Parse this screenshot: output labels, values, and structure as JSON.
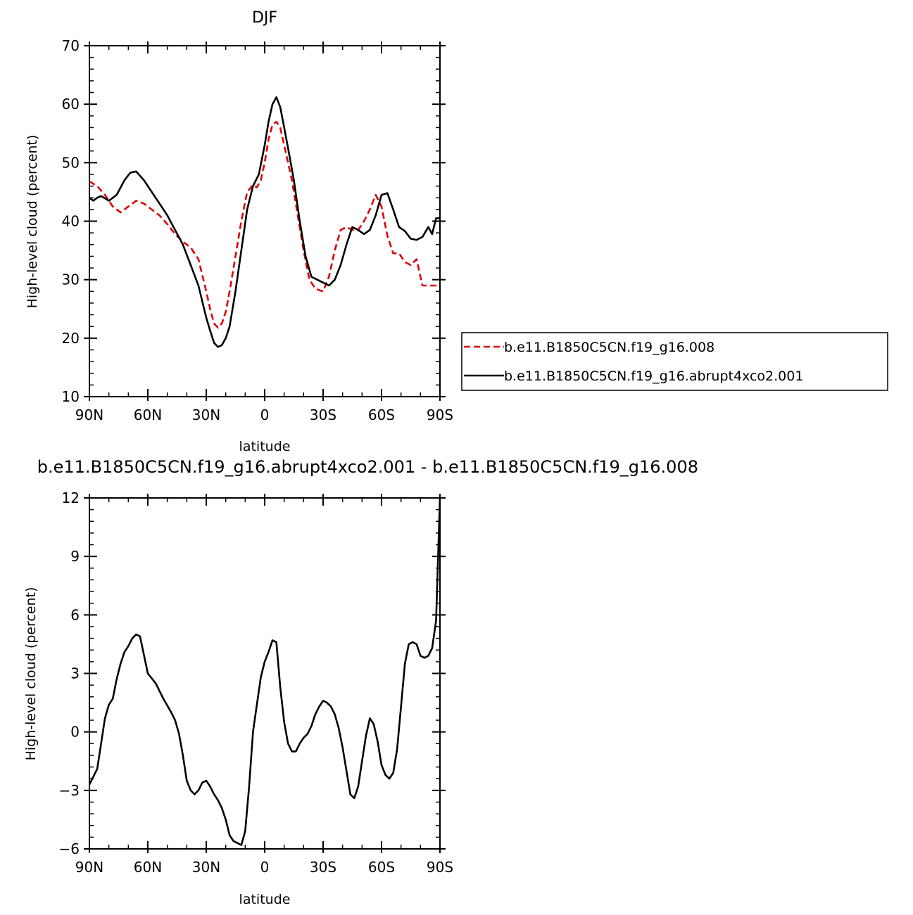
{
  "chart_data": [
    {
      "type": "line",
      "title": "DJF",
      "xlabel": "latitude",
      "ylabel": "High-level cloud (percent)",
      "xlim": [
        90,
        -90
      ],
      "ylim": [
        10,
        70
      ],
      "xtick_values": [
        90,
        60,
        30,
        0,
        -30,
        -60,
        -90
      ],
      "xtick_labels": [
        "90N",
        "60N",
        "30N",
        "0",
        "30S",
        "60S",
        "90S"
      ],
      "ytick_values": [
        10,
        20,
        30,
        40,
        50,
        60,
        70
      ],
      "ytick_labels": [
        "10",
        "20",
        "30",
        "40",
        "50",
        "60",
        "70"
      ],
      "grid": false,
      "legend": "right",
      "series": [
        {
          "name": "b.e11.B1850C5CN.f19_g16.008",
          "color": "#e00000",
          "dashed": true,
          "x": [
            90,
            86,
            82,
            78,
            74,
            70,
            66,
            62,
            58,
            54,
            50,
            46,
            42,
            38,
            34,
            30,
            28,
            26,
            24,
            22,
            20,
            18,
            15,
            12,
            9,
            6,
            4,
            2,
            0,
            -2,
            -4,
            -6,
            -8,
            -10,
            -12,
            -14,
            -17,
            -20,
            -23,
            -26,
            -28,
            -30,
            -33,
            -36,
            -39,
            -42,
            -45,
            -48,
            -51,
            -54,
            -57,
            -60,
            -63,
            -66,
            -69,
            -72,
            -75,
            -78,
            -81,
            -84,
            -86,
            -88,
            -90
          ],
          "y": [
            46.8,
            46,
            44.5,
            42.5,
            41.5,
            42.5,
            43.5,
            43,
            42,
            41,
            39.5,
            37.8,
            36.5,
            35.5,
            33.5,
            28,
            25,
            22.5,
            21.8,
            22.5,
            24.5,
            28,
            34,
            40,
            45,
            46.2,
            45.8,
            47,
            50,
            54,
            56.5,
            57,
            56,
            53,
            50,
            47,
            41,
            35,
            30,
            28.5,
            28.2,
            28,
            30.5,
            35,
            38.5,
            39,
            38.5,
            38.5,
            40,
            42,
            44.5,
            42.5,
            37.5,
            34.5,
            34.5,
            33,
            32.5,
            33.5,
            29,
            29,
            29,
            29,
            29
          ]
        },
        {
          "name": "b.e11.B1850C5CN.f19_g16.abrupt4xco2.001",
          "color": "#000000",
          "dashed": false,
          "x": [
            90,
            88,
            86,
            84,
            80,
            76,
            72,
            69,
            66,
            62,
            58,
            54,
            50,
            46,
            42,
            38,
            34,
            30,
            28,
            26,
            24,
            22,
            20,
            18,
            15,
            12,
            9,
            6,
            3,
            0,
            -2,
            -4,
            -6,
            -8,
            -10,
            -12,
            -15,
            -18,
            -21,
            -24,
            -27,
            -30,
            -33,
            -36,
            -39,
            -42,
            -45,
            -48,
            -51,
            -54,
            -57,
            -60,
            -63,
            -66,
            -69,
            -72,
            -75,
            -78,
            -81,
            -84,
            -86,
            -88,
            -90
          ],
          "y": [
            44,
            43.5,
            44,
            44.3,
            43.5,
            44.5,
            47,
            48.3,
            48.5,
            47,
            45,
            43,
            41,
            38.5,
            36,
            32.5,
            29,
            23.5,
            21.3,
            19.2,
            18.5,
            18.8,
            20,
            22,
            28,
            35,
            42,
            46,
            48,
            53,
            57,
            60,
            61.2,
            59.5,
            56,
            52.5,
            47,
            40,
            34,
            30.5,
            30,
            29.5,
            29,
            30,
            32.5,
            36,
            39,
            38.5,
            37.8,
            38.5,
            41,
            44.5,
            44.8,
            42,
            39,
            38.3,
            37,
            36.8,
            37.3,
            39,
            37.8,
            40.5,
            40.5
          ]
        }
      ]
    },
    {
      "type": "line",
      "title": "b.e11.B1850C5CN.f19_g16.abrupt4xco2.001 - b.e11.B1850C5CN.f19_g16.008",
      "xlabel": "latitude",
      "ylabel": "High-level cloud (percent)",
      "xlim": [
        90,
        -90
      ],
      "ylim": [
        -6,
        12
      ],
      "xtick_values": [
        90,
        60,
        30,
        0,
        -30,
        -60,
        -90
      ],
      "xtick_labels": [
        "90N",
        "60N",
        "30N",
        "0",
        "30S",
        "60S",
        "90S"
      ],
      "ytick_values": [
        -6,
        -3,
        0,
        3,
        6,
        9,
        12
      ],
      "ytick_labels": [
        "−6",
        "−3",
        "0",
        "3",
        "6",
        "9",
        "12"
      ],
      "grid": false,
      "series": [
        {
          "color": "#000000",
          "dashed": false,
          "x": [
            90,
            86,
            84,
            82,
            80,
            78,
            76,
            74,
            72,
            70,
            68,
            66,
            64,
            60,
            56,
            52,
            48,
            46,
            44,
            42,
            40,
            38,
            36,
            34,
            32,
            30,
            28,
            26,
            24,
            22,
            20,
            18,
            16,
            14,
            12,
            10,
            8,
            6,
            4,
            2,
            0,
            -2,
            -4,
            -6,
            -8,
            -10,
            -12,
            -14,
            -16,
            -18,
            -20,
            -22,
            -24,
            -26,
            -28,
            -30,
            -32,
            -34,
            -36,
            -38,
            -40,
            -42,
            -44,
            -46,
            -48,
            -50,
            -52,
            -54,
            -56,
            -58,
            -60,
            -62,
            -64,
            -66,
            -68,
            -70,
            -72,
            -74,
            -76,
            -78,
            -80,
            -82,
            -84,
            -86,
            -88,
            -90
          ],
          "y": [
            -2.7,
            -1.9,
            -0.6,
            0.7,
            1.4,
            1.7,
            2.7,
            3.5,
            4.1,
            4.4,
            4.8,
            5.0,
            4.9,
            3.0,
            2.5,
            1.7,
            1.0,
            0.6,
            -0.1,
            -1.2,
            -2.5,
            -3.0,
            -3.2,
            -3.0,
            -2.6,
            -2.5,
            -2.8,
            -3.2,
            -3.5,
            -3.9,
            -4.5,
            -5.3,
            -5.6,
            -5.7,
            -5.8,
            -5.1,
            -2.8,
            0.0,
            1.4,
            2.8,
            3.6,
            4.1,
            4.7,
            4.6,
            2.3,
            0.5,
            -0.6,
            -1.0,
            -1.0,
            -0.6,
            -0.3,
            -0.1,
            0.3,
            0.9,
            1.3,
            1.6,
            1.5,
            1.3,
            0.9,
            0.2,
            -0.8,
            -2.0,
            -3.2,
            -3.4,
            -2.8,
            -1.5,
            -0.2,
            0.7,
            0.4,
            -0.5,
            -1.7,
            -2.2,
            -2.4,
            -2.1,
            -0.9,
            1.3,
            3.5,
            4.5,
            4.6,
            4.5,
            3.9,
            3.8,
            3.9,
            4.3,
            5.7,
            12.0
          ]
        }
      ]
    }
  ]
}
